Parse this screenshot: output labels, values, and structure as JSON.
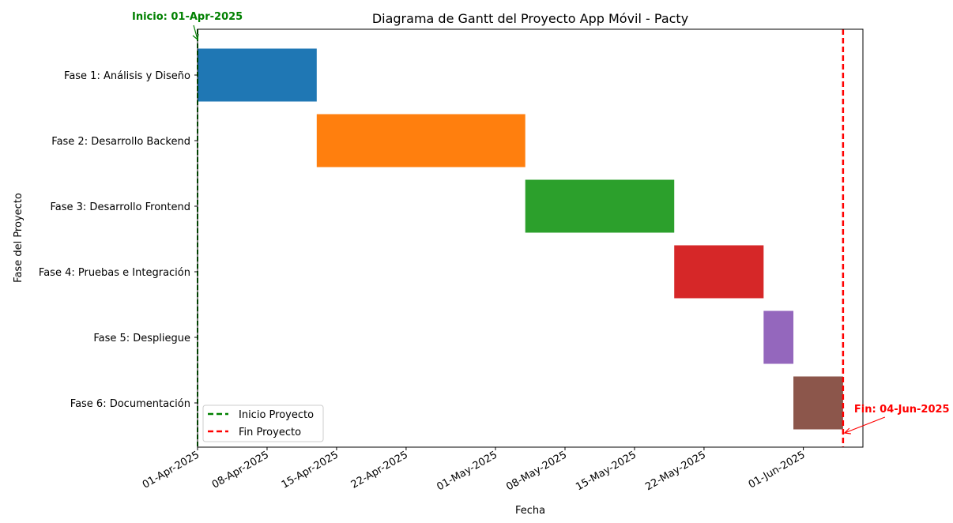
{
  "chart_data": {
    "type": "gantt",
    "title": "Diagrama de Gantt del Proyecto App Móvil - Pacty",
    "xlabel": "Fecha",
    "ylabel": "Fase del Proyecto",
    "x_range": [
      "2025-04-01",
      "2025-06-07"
    ],
    "x_ticks": [
      {
        "date": "2025-04-01",
        "label": "01-Apr-2025"
      },
      {
        "date": "2025-04-08",
        "label": "08-Apr-2025"
      },
      {
        "date": "2025-04-15",
        "label": "15-Apr-2025"
      },
      {
        "date": "2025-04-22",
        "label": "22-Apr-2025"
      },
      {
        "date": "2025-05-01",
        "label": "01-May-2025"
      },
      {
        "date": "2025-05-08",
        "label": "08-May-2025"
      },
      {
        "date": "2025-05-15",
        "label": "15-May-2025"
      },
      {
        "date": "2025-05-22",
        "label": "22-May-2025"
      },
      {
        "date": "2025-06-01",
        "label": "01-Jun-2025"
      }
    ],
    "tasks": [
      {
        "name": "Fase 1: Análisis y Diseño",
        "start": "2025-04-01",
        "end": "2025-04-12",
        "color": "#1f77b4"
      },
      {
        "name": "Fase 2: Desarrollo Backend",
        "start": "2025-04-13",
        "end": "2025-05-03",
        "color": "#ff7f0e"
      },
      {
        "name": "Fase 3: Desarrollo Frontend",
        "start": "2025-05-04",
        "end": "2025-05-18",
        "color": "#2ca02c"
      },
      {
        "name": "Fase 4: Pruebas e Integración",
        "start": "2025-05-19",
        "end": "2025-05-27",
        "color": "#d62728"
      },
      {
        "name": "Fase 5: Despliegue",
        "start": "2025-05-28",
        "end": "2025-05-30",
        "color": "#9467bd"
      },
      {
        "name": "Fase 6: Documentación",
        "start": "2025-05-31",
        "end": "2025-06-04",
        "color": "#8c564b"
      }
    ],
    "markers": [
      {
        "name": "Inicio Proyecto",
        "date": "2025-04-01",
        "color": "#008000",
        "annotation": "Inicio: 01-Apr-2025"
      },
      {
        "name": "Fin Proyecto",
        "date": "2025-06-04",
        "color": "#ff0000",
        "annotation": "Fin: 04-Jun-2025"
      }
    ],
    "legend_position": "lower-left",
    "grid": false
  }
}
